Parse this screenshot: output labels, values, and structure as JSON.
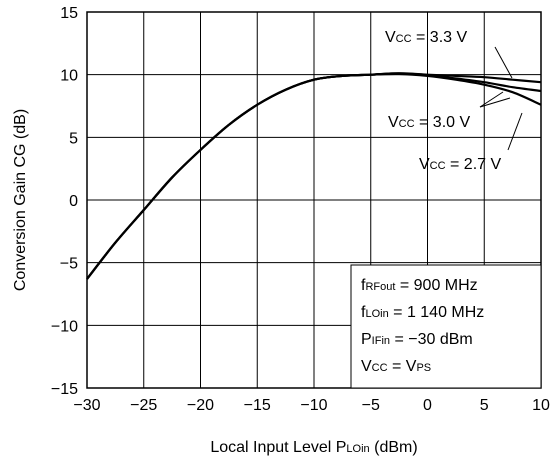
{
  "chart_data": {
    "type": "line",
    "title": "",
    "xlabel": {
      "main": "Local Input Level  P",
      "sub": "LOin",
      "unit": "  (dBm)"
    },
    "ylabel": "Conversion Gain  CG  (dB)",
    "xlim": [
      -30,
      10
    ],
    "ylim": [
      -15,
      15
    ],
    "xticks": [
      -30,
      -25,
      -20,
      -15,
      -10,
      -5,
      0,
      5,
      10
    ],
    "yticks": [
      -15,
      -10,
      -5,
      0,
      5,
      10,
      15
    ],
    "xtick_labels": [
      "−30",
      "−25",
      "−20",
      "−15",
      "−10",
      "−5",
      "0",
      "5",
      "10"
    ],
    "ytick_labels": [
      "−15",
      "−10",
      "−5",
      "0",
      "5",
      "10",
      "15"
    ],
    "grid": true,
    "series": [
      {
        "name": "VCC = 3.3 V",
        "x": [
          -30,
          -27.5,
          -25,
          -22.5,
          -20,
          -17.5,
          -15,
          -12.5,
          -10,
          -7.5,
          -5,
          -2.5,
          0,
          2.5,
          5,
          7.5,
          10
        ],
        "y": [
          -6.3,
          -3.4,
          -0.8,
          1.8,
          4.0,
          6.0,
          7.6,
          8.8,
          9.6,
          9.9,
          10.0,
          10.1,
          10.0,
          9.9,
          9.8,
          9.6,
          9.4
        ]
      },
      {
        "name": "VCC = 3.0 V",
        "x": [
          -30,
          -27.5,
          -25,
          -22.5,
          -20,
          -17.5,
          -15,
          -12.5,
          -10,
          -7.5,
          -5,
          -2.5,
          0,
          2.5,
          5,
          7.5,
          10
        ],
        "y": [
          -6.3,
          -3.4,
          -0.8,
          1.8,
          4.0,
          6.0,
          7.6,
          8.8,
          9.6,
          9.9,
          10.0,
          10.1,
          9.95,
          9.7,
          9.4,
          9.0,
          8.7
        ]
      },
      {
        "name": "VCC = 2.7 V",
        "x": [
          -30,
          -27.5,
          -25,
          -22.5,
          -20,
          -17.5,
          -15,
          -12.5,
          -10,
          -7.5,
          -5,
          -2.5,
          0,
          2.5,
          5,
          7.5,
          10
        ],
        "y": [
          -6.3,
          -3.4,
          -0.8,
          1.8,
          4.0,
          6.0,
          7.6,
          8.8,
          9.6,
          9.9,
          10.0,
          10.05,
          9.9,
          9.6,
          9.2,
          8.6,
          7.6
        ]
      }
    ],
    "annotations": [
      {
        "main": "V",
        "sub": "CC",
        "rest": " = 3.3 V"
      },
      {
        "main": "V",
        "sub": "CC",
        "rest": " = 3.0 V"
      },
      {
        "main": "V",
        "sub": "CC",
        "rest": " = 2.7 V"
      }
    ],
    "conditions": [
      {
        "main": "f",
        "sub": "RFout",
        "rest": " = 900 MHz"
      },
      {
        "main": "f",
        "sub": "LOin",
        "rest": " = 1 140 MHz"
      },
      {
        "main": "P",
        "sub": "IFin",
        "rest": " = −30 dBm"
      },
      {
        "main": "V",
        "sub": "CC",
        "rest": " = V",
        "sub2": "PS"
      }
    ]
  }
}
